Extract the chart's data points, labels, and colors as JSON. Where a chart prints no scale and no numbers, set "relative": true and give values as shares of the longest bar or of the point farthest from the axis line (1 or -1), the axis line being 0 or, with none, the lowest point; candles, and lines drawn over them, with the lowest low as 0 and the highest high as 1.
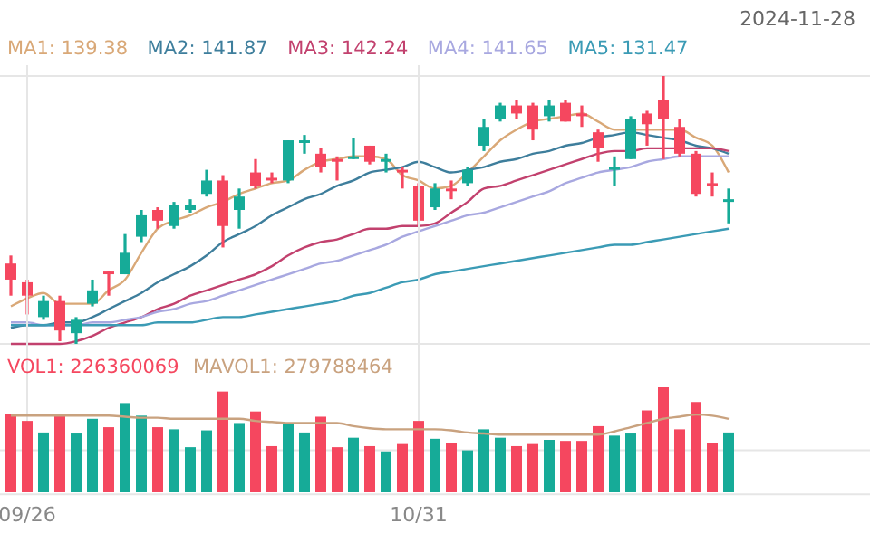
{
  "chart_data": [
    {
      "type": "candlestick",
      "relative": true,
      "grid": "y",
      "legend": "top left",
      "annotations": [
        "2024-11-28"
      ],
      "categories": [
        null,
        null,
        null,
        null,
        null,
        null,
        null,
        null,
        null,
        null,
        null,
        null,
        null,
        null,
        null,
        null,
        null,
        null,
        null,
        null,
        null,
        null,
        null,
        null,
        null,
        null,
        null,
        null,
        null,
        null,
        null,
        null,
        null,
        null,
        null,
        null,
        null,
        null,
        null,
        null,
        null,
        null,
        null,
        null,
        null
      ],
      "ohlc": [
        [
          0.3,
          0.33,
          0.18,
          0.24
        ],
        [
          0.23,
          0.24,
          0.11,
          0.18
        ],
        [
          0.1,
          0.18,
          0.09,
          0.16
        ],
        [
          0.16,
          0.18,
          0.01,
          0.05
        ],
        [
          0.04,
          0.1,
          0.0,
          0.09
        ],
        [
          0.15,
          0.24,
          0.14,
          0.2
        ],
        [
          0.27,
          0.27,
          0.18,
          0.26
        ],
        [
          0.26,
          0.41,
          0.26,
          0.34
        ],
        [
          0.4,
          0.5,
          0.38,
          0.48
        ],
        [
          0.5,
          0.51,
          0.43,
          0.46
        ],
        [
          0.44,
          0.53,
          0.43,
          0.52
        ],
        [
          0.5,
          0.54,
          0.49,
          0.52
        ],
        [
          0.56,
          0.65,
          0.55,
          0.61
        ],
        [
          0.61,
          0.63,
          0.36,
          0.44
        ],
        [
          0.5,
          0.58,
          0.43,
          0.55
        ],
        [
          0.64,
          0.69,
          0.58,
          0.59
        ],
        [
          0.62,
          0.64,
          0.6,
          0.61
        ],
        [
          0.61,
          0.76,
          0.6,
          0.76
        ],
        [
          0.75,
          0.78,
          0.71,
          0.76
        ],
        [
          0.71,
          0.73,
          0.64,
          0.66
        ],
        [
          0.69,
          0.7,
          0.61,
          0.68
        ],
        [
          0.69,
          0.77,
          0.69,
          0.7
        ],
        [
          0.74,
          0.74,
          0.67,
          0.68
        ],
        [
          0.68,
          0.71,
          0.64,
          0.69
        ],
        [
          0.65,
          0.66,
          0.58,
          0.64
        ],
        [
          0.59,
          0.6,
          0.44,
          0.46
        ],
        [
          0.51,
          0.6,
          0.5,
          0.58
        ],
        [
          0.58,
          0.61,
          0.54,
          0.57
        ],
        [
          0.6,
          0.66,
          0.59,
          0.65
        ],
        [
          0.74,
          0.84,
          0.72,
          0.81
        ],
        [
          0.84,
          0.9,
          0.83,
          0.89
        ],
        [
          0.89,
          0.91,
          0.84,
          0.86
        ],
        [
          0.89,
          0.9,
          0.76,
          0.8
        ],
        [
          0.85,
          0.91,
          0.83,
          0.89
        ],
        [
          0.9,
          0.91,
          0.83,
          0.83
        ],
        [
          0.86,
          0.89,
          0.81,
          0.85
        ],
        [
          0.79,
          0.8,
          0.68,
          0.73
        ],
        [
          0.65,
          0.7,
          0.59,
          0.66
        ],
        [
          0.69,
          0.85,
          0.69,
          0.84
        ],
        [
          0.86,
          0.87,
          0.74,
          0.82
        ],
        [
          0.91,
          1.0,
          0.69,
          0.84
        ],
        [
          0.81,
          0.84,
          0.7,
          0.71
        ],
        [
          0.71,
          0.72,
          0.55,
          0.56
        ],
        [
          0.6,
          0.64,
          0.55,
          0.59
        ],
        [
          0.53,
          0.58,
          0.45,
          0.54
        ]
      ],
      "colors": [
        "#f5475f",
        "#f5475f",
        "#16ab98",
        "#f5475f",
        "#16ab98",
        "#16ab98",
        "#f5475f",
        "#16ab98",
        "#16ab98",
        "#f5475f",
        "#16ab98",
        "#16ab98",
        "#16ab98",
        "#f5475f",
        "#16ab98",
        "#f5475f",
        "#f5475f",
        "#16ab98",
        "#16ab98",
        "#f5475f",
        "#f5475f",
        "#16ab98",
        "#f5475f",
        "#16ab98",
        "#f5475f",
        "#f5475f",
        "#16ab98",
        "#f5475f",
        "#16ab98",
        "#16ab98",
        "#16ab98",
        "#f5475f",
        "#f5475f",
        "#16ab98",
        "#f5475f",
        "#f5475f",
        "#f5475f",
        "#16ab98",
        "#16ab98",
        "#f5475f",
        "#f5475f",
        "#f5475f",
        "#f5475f",
        "#f5475f",
        "#16ab98"
      ],
      "series": [
        {
          "name": "MA1: 139.38",
          "type": "line",
          "color": "#d9a877",
          "values": [
            0.14,
            0.17,
            0.19,
            0.15,
            0.15,
            0.15,
            0.2,
            0.24,
            0.34,
            0.43,
            0.46,
            0.48,
            0.51,
            0.53,
            0.56,
            0.58,
            0.6,
            0.61,
            0.65,
            0.68,
            0.69,
            0.7,
            0.7,
            0.69,
            0.63,
            0.61,
            0.58,
            0.59,
            0.64,
            0.7,
            0.76,
            0.8,
            0.83,
            0.84,
            0.85,
            0.86,
            0.83,
            0.8,
            0.8,
            0.8,
            0.8,
            0.8,
            0.77,
            0.74,
            0.64
          ]
        },
        {
          "name": "MA2: 141.87",
          "type": "line",
          "color": "#3e7e9c",
          "values": [
            0.06,
            0.07,
            0.07,
            0.08,
            0.08,
            0.1,
            0.13,
            0.16,
            0.19,
            0.23,
            0.26,
            0.29,
            0.33,
            0.38,
            0.41,
            0.44,
            0.48,
            0.51,
            0.54,
            0.56,
            0.59,
            0.61,
            0.64,
            0.65,
            0.66,
            0.68,
            0.66,
            0.64,
            0.65,
            0.66,
            0.68,
            0.69,
            0.71,
            0.72,
            0.74,
            0.75,
            0.77,
            0.78,
            0.79,
            0.78,
            0.77,
            0.76,
            0.74,
            0.73,
            0.71
          ]
        },
        {
          "name": "MA3: 142.24",
          "type": "line",
          "color": "#c2416e",
          "values": [
            0,
            0,
            0,
            0,
            0.01,
            0.03,
            0.06,
            0.08,
            0.1,
            0.13,
            0.15,
            0.18,
            0.2,
            0.22,
            0.24,
            0.26,
            0.29,
            0.33,
            0.36,
            0.38,
            0.39,
            0.41,
            0.43,
            0.43,
            0.44,
            0.44,
            0.45,
            0.49,
            0.53,
            0.58,
            0.59,
            0.61,
            0.63,
            0.65,
            0.67,
            0.69,
            0.71,
            0.72,
            0.72,
            0.73,
            0.73,
            0.73,
            0.73,
            0.73,
            0.72
          ]
        },
        {
          "name": "MA4: 141.65",
          "type": "line",
          "color": "#a8a8e0",
          "values": [
            0.08,
            0.08,
            0.07,
            0.07,
            0.07,
            0.08,
            0.08,
            0.09,
            0.1,
            0.12,
            0.13,
            0.15,
            0.16,
            0.18,
            0.2,
            0.22,
            0.24,
            0.26,
            0.28,
            0.3,
            0.31,
            0.33,
            0.35,
            0.37,
            0.4,
            0.42,
            0.44,
            0.46,
            0.48,
            0.49,
            0.51,
            0.53,
            0.55,
            0.57,
            0.6,
            0.62,
            0.64,
            0.65,
            0.66,
            0.68,
            0.69,
            0.7,
            0.7,
            0.7,
            0.7
          ]
        },
        {
          "name": "MA5: 131.47",
          "type": "line",
          "color": "#3b9bb5",
          "values": [
            0.07,
            0.07,
            0.07,
            0.07,
            0.07,
            0.07,
            0.07,
            0.07,
            0.07,
            0.08,
            0.08,
            0.08,
            0.09,
            0.1,
            0.1,
            0.11,
            0.12,
            0.13,
            0.14,
            0.15,
            0.16,
            0.18,
            0.19,
            0.21,
            0.23,
            0.24,
            0.26,
            0.27,
            0.28,
            0.29,
            0.3,
            0.31,
            0.32,
            0.33,
            0.34,
            0.35,
            0.36,
            0.37,
            0.37,
            0.38,
            0.39,
            0.4,
            0.41,
            0.42,
            0.43
          ]
        }
      ]
    },
    {
      "type": "bar",
      "relative": true,
      "tick_labels": "x",
      "grid": true,
      "legend": "top left",
      "categories": [
        null,
        "09/26",
        null,
        null,
        null,
        null,
        null,
        null,
        null,
        null,
        null,
        null,
        null,
        null,
        null,
        null,
        null,
        null,
        null,
        null,
        null,
        null,
        null,
        null,
        null,
        "10/31",
        null,
        null,
        null,
        null,
        null,
        null,
        null,
        null,
        null,
        null,
        null,
        null,
        null,
        null,
        null,
        null,
        null,
        null,
        null
      ],
      "series": [
        {
          "name": "VOL1: 226360069",
          "color": "#f5475f",
          "colors": [
            "#f5475f",
            "#f5475f",
            "#16ab98",
            "#f5475f",
            "#16ab98",
            "#16ab98",
            "#f5475f",
            "#16ab98",
            "#16ab98",
            "#f5475f",
            "#16ab98",
            "#16ab98",
            "#16ab98",
            "#f5475f",
            "#16ab98",
            "#f5475f",
            "#f5475f",
            "#16ab98",
            "#16ab98",
            "#f5475f",
            "#f5475f",
            "#16ab98",
            "#f5475f",
            "#16ab98",
            "#f5475f",
            "#f5475f",
            "#16ab98",
            "#f5475f",
            "#16ab98",
            "#16ab98",
            "#16ab98",
            "#f5475f",
            "#f5475f",
            "#16ab98",
            "#f5475f",
            "#f5475f",
            "#f5475f",
            "#16ab98",
            "#16ab98",
            "#f5475f",
            "#f5475f",
            "#f5475f",
            "#f5475f",
            "#f5475f",
            "#16ab98"
          ],
          "values": [
            0.75,
            0.68,
            0.57,
            0.75,
            0.56,
            0.7,
            0.62,
            0.85,
            0.73,
            0.62,
            0.6,
            0.43,
            0.59,
            0.96,
            0.66,
            0.77,
            0.44,
            0.66,
            0.57,
            0.72,
            0.43,
            0.52,
            0.44,
            0.39,
            0.46,
            0.68,
            0.51,
            0.47,
            0.4,
            0.6,
            0.52,
            0.44,
            0.46,
            0.5,
            0.49,
            0.49,
            0.63,
            0.54,
            0.56,
            0.78,
            1,
            0.6,
            0.86,
            0.47,
            0.57
          ]
        },
        {
          "name": "MAVOL1: 279788464",
          "type": "line",
          "color": "#c9a27f",
          "values": [
            0.73,
            0.73,
            0.73,
            0.73,
            0.73,
            0.73,
            0.73,
            0.72,
            0.71,
            0.71,
            0.7,
            0.7,
            0.7,
            0.7,
            0.7,
            0.68,
            0.67,
            0.66,
            0.66,
            0.66,
            0.66,
            0.63,
            0.61,
            0.6,
            0.6,
            0.6,
            0.6,
            0.59,
            0.57,
            0.56,
            0.55,
            0.55,
            0.55,
            0.55,
            0.55,
            0.55,
            0.55,
            0.58,
            0.62,
            0.66,
            0.7,
            0.72,
            0.74,
            0.73,
            0.7
          ]
        }
      ]
    }
  ]
}
